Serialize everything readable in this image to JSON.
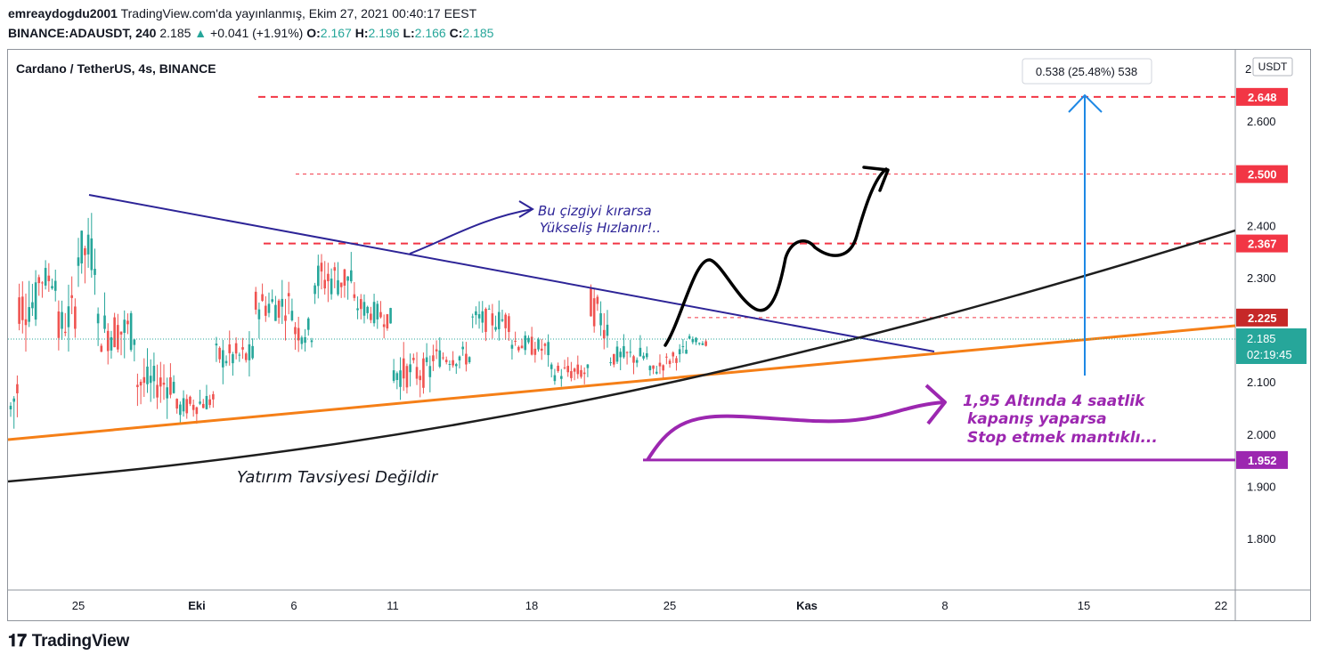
{
  "header": {
    "author": "emreaydogdu2001",
    "published": "TradingView.com'da yayınlanmış, Ekim 27, 2021 00:40:17 EEST",
    "symbol": "BINANCE:ADAUSDT, 240",
    "last": "2.185",
    "change": "+0.041 (+1.91%)",
    "o_label": "O:",
    "o_value": "2.167",
    "h_label": "H:",
    "h_value": "2.196",
    "l_label": "L:",
    "l_value": "2.166",
    "c_label": "C:",
    "c_value": "2.185"
  },
  "chart": {
    "title": "Cardano / TetherUS, 4s, BINANCE",
    "currency": "USDT",
    "axis_top_label": "2",
    "measure_label": "0.538 (25.48%) 538",
    "countdown": "02:19:45",
    "current_price": "2.185"
  },
  "annotations": {
    "blue_text": [
      "Bu çizgiyi kırarsa",
      "Yükseliş Hızlanır!.."
    ],
    "purple_text": [
      "1,95 Altında 4 saatlik",
      "kapanış yaparsa",
      "Stop etmek mantıklı..."
    ],
    "disclaimer": "Yatırım Tavsiyesi Değildir"
  },
  "footer": {
    "logo_text": "TradingView"
  },
  "colors": {
    "up": "#26a69a",
    "down": "#ef5350",
    "level": "#f23645",
    "blue_trend": "#2d2497",
    "orange": "#f57f17",
    "black": "#1e1e1e",
    "measure": "#1e88e5",
    "purple": "#9c27b0"
  },
  "chart_data": {
    "type": "candlestick",
    "symbol": "ADAUSDT",
    "timeframe": "4h",
    "x_ticks": [
      "25",
      "Eki",
      "6",
      "11",
      "18",
      "25",
      "Kas",
      "8",
      "15",
      "22"
    ],
    "y_ticks": [
      2.6,
      2.4,
      2.3,
      2.1,
      2.0,
      1.9,
      1.8
    ],
    "y_ticks_text": [
      "2.600",
      "2.400",
      "2.300",
      "2.100",
      "2.000",
      "1.900",
      "1.800"
    ],
    "ylim": [
      1.73,
      2.73
    ],
    "levels": [
      {
        "value": 2.648,
        "label": "2.648"
      },
      {
        "value": 2.5,
        "label": "2.500"
      },
      {
        "value": 2.367,
        "label": "2.367"
      },
      {
        "value": 2.225,
        "label": "2.225"
      },
      {
        "value": 1.952,
        "label": "1.952"
      }
    ],
    "candles_approx": [
      {
        "date": "2021-09-21",
        "open": 2.15,
        "close": 2.05,
        "high": 2.2,
        "low": 1.92
      },
      {
        "date": "2021-09-22",
        "open": 2.1,
        "close": 2.25,
        "high": 2.3,
        "low": 2.05
      },
      {
        "date": "2021-09-23",
        "open": 2.25,
        "close": 2.3,
        "high": 2.35,
        "low": 2.2
      },
      {
        "date": "2021-09-24",
        "open": 2.3,
        "close": 2.2,
        "high": 2.33,
        "low": 2.1
      },
      {
        "date": "2021-09-25",
        "open": 2.25,
        "close": 2.35,
        "high": 2.46,
        "low": 2.2
      },
      {
        "date": "2021-09-26",
        "open": 2.35,
        "close": 2.2,
        "high": 2.4,
        "low": 2.15
      },
      {
        "date": "2021-09-28",
        "open": 2.2,
        "close": 2.1,
        "high": 2.24,
        "low": 2.05
      },
      {
        "date": "2021-09-30",
        "open": 2.1,
        "close": 2.05,
        "high": 2.14,
        "low": 2.02
      },
      {
        "date": "2021-10-02",
        "open": 2.07,
        "close": 2.15,
        "high": 2.2,
        "low": 2.04
      },
      {
        "date": "2021-10-04",
        "open": 2.15,
        "close": 2.25,
        "high": 2.3,
        "low": 2.12
      },
      {
        "date": "2021-10-06",
        "open": 2.25,
        "close": 2.2,
        "high": 2.3,
        "low": 2.15
      },
      {
        "date": "2021-10-07",
        "open": 2.2,
        "close": 2.3,
        "high": 2.37,
        "low": 2.15
      },
      {
        "date": "2021-10-09",
        "open": 2.3,
        "close": 2.25,
        "high": 2.32,
        "low": 2.2
      },
      {
        "date": "2021-10-11",
        "open": 2.22,
        "close": 2.12,
        "high": 2.25,
        "low": 2.08
      },
      {
        "date": "2021-10-13",
        "open": 2.12,
        "close": 2.15,
        "high": 2.2,
        "low": 2.08
      },
      {
        "date": "2021-10-15",
        "open": 2.15,
        "close": 2.22,
        "high": 2.25,
        "low": 2.12
      },
      {
        "date": "2021-10-17",
        "open": 2.22,
        "close": 2.18,
        "high": 2.25,
        "low": 2.14
      },
      {
        "date": "2021-10-19",
        "open": 2.16,
        "close": 2.12,
        "high": 2.2,
        "low": 2.1
      },
      {
        "date": "2021-10-21",
        "open": 2.12,
        "close": 2.25,
        "high": 2.3,
        "low": 2.1
      },
      {
        "date": "2021-10-22",
        "open": 2.2,
        "close": 2.15,
        "high": 2.24,
        "low": 2.12
      },
      {
        "date": "2021-10-24",
        "open": 2.15,
        "close": 2.12,
        "high": 2.18,
        "low": 2.1
      },
      {
        "date": "2021-10-26",
        "open": 2.167,
        "close": 2.185,
        "high": 2.196,
        "low": 2.166
      }
    ]
  }
}
